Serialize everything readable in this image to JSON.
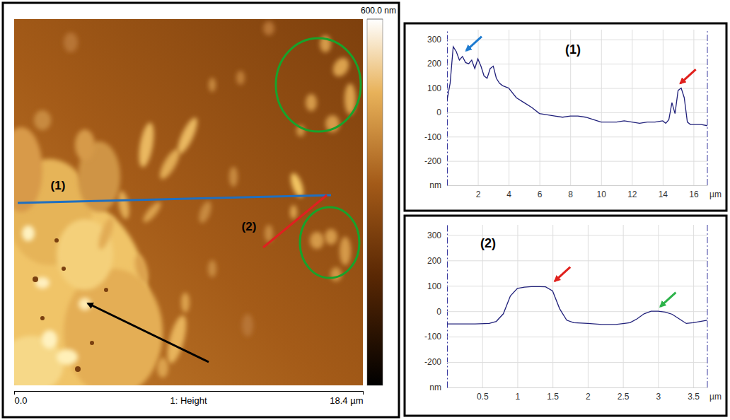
{
  "chart_data": [
    {
      "type": "image",
      "title": "1: Height",
      "xlim": [
        0,
        18.4
      ],
      "xticks": [
        {
          "value": 0,
          "label": "0.0"
        },
        {
          "value": 18.4,
          "label": "18.4 µm"
        }
      ],
      "colorbar_range": [
        0,
        600
      ],
      "colorbar_ticks": [
        {
          "value": 600,
          "label": "600.0 nm"
        }
      ],
      "annotations": [
        "(1)",
        "(2)"
      ]
    },
    {
      "type": "line",
      "title": "(1)",
      "color": "#20207a",
      "x": [
        0,
        0.2,
        0.4,
        0.6,
        0.8,
        1.0,
        1.2,
        1.4,
        1.6,
        1.8,
        2.0,
        2.2,
        2.4,
        2.6,
        2.8,
        3.0,
        3.2,
        3.4,
        3.6,
        3.8,
        4.0,
        4.5,
        5.0,
        5.5,
        6.0,
        6.5,
        7.0,
        7.5,
        8.0,
        8.5,
        9.0,
        9.5,
        10.0,
        10.5,
        11.0,
        11.5,
        12.0,
        12.5,
        13.0,
        13.5,
        14.0,
        14.2,
        14.4,
        14.6,
        14.8,
        15.0,
        15.2,
        15.4,
        15.6,
        15.8,
        16.0,
        16.5,
        16.9
      ],
      "values": [
        50,
        120,
        270,
        250,
        215,
        230,
        205,
        200,
        215,
        180,
        220,
        190,
        150,
        140,
        180,
        190,
        140,
        120,
        110,
        105,
        100,
        60,
        40,
        20,
        -5,
        -10,
        -15,
        -20,
        -15,
        -15,
        -20,
        -30,
        -40,
        -40,
        -40,
        -35,
        -40,
        -45,
        -40,
        -40,
        -35,
        -45,
        -30,
        40,
        -5,
        90,
        100,
        60,
        -40,
        -50,
        -50,
        -50,
        -55
      ],
      "xlim": [
        0,
        16.9
      ],
      "xticks": [
        2,
        4,
        6,
        8,
        10,
        12,
        14,
        16
      ],
      "ylim": [
        -300,
        340
      ],
      "yticks": [
        300,
        200,
        100,
        0,
        -100,
        -200
      ],
      "x_label": "µm",
      "y_label": "nm",
      "grid": true,
      "arrows": [
        {
          "x": 1.1,
          "y": 245,
          "color": "#1e7bd0"
        },
        {
          "x": 15.0,
          "y": 110,
          "color": "#e0201c"
        }
      ]
    },
    {
      "type": "line",
      "title": "(2)",
      "color": "#20207a",
      "x": [
        0,
        0.2,
        0.4,
        0.6,
        0.7,
        0.8,
        0.9,
        1.0,
        1.1,
        1.2,
        1.3,
        1.4,
        1.5,
        1.6,
        1.7,
        1.8,
        2.0,
        2.2,
        2.4,
        2.6,
        2.7,
        2.8,
        2.9,
        3.0,
        3.1,
        3.2,
        3.3,
        3.4,
        3.5,
        3.6,
        3.7
      ],
      "values": [
        -50,
        -50,
        -50,
        -48,
        -40,
        -10,
        60,
        90,
        95,
        97,
        97,
        96,
        80,
        10,
        -35,
        -45,
        -48,
        -52,
        -52,
        -45,
        -30,
        -10,
        0,
        0,
        -3,
        -12,
        -30,
        -48,
        -45,
        -40,
        -35
      ],
      "xlim": [
        0,
        3.7
      ],
      "xticks": [
        0.5,
        1,
        1.5,
        2,
        2.5,
        3,
        3.5
      ],
      "ylim": [
        -300,
        340
      ],
      "yticks": [
        300,
        200,
        100,
        0,
        -100,
        -200
      ],
      "x_label": "µm",
      "y_label": "nm",
      "grid": true,
      "arrows": [
        {
          "x": 1.5,
          "y": 110,
          "color": "#e0201c"
        },
        {
          "x": 3.0,
          "y": 10,
          "color": "#2db34a"
        }
      ]
    }
  ]
}
